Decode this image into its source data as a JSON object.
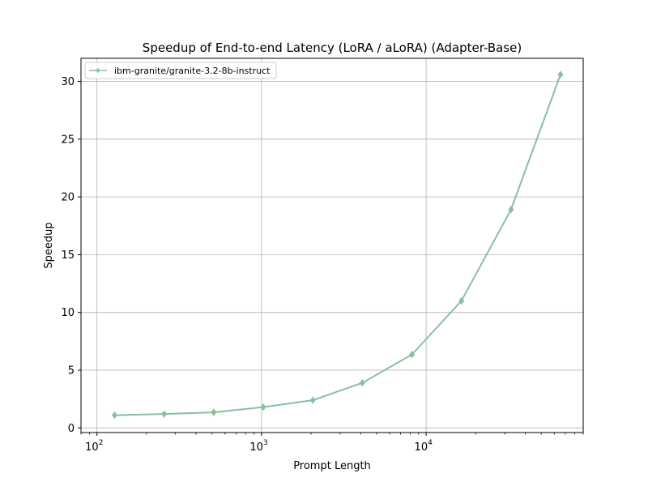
{
  "chart_data": {
    "type": "line",
    "title": "Speedup of End-to-end Latency (LoRA / aLoRA) (Adapter-Base)",
    "xlabel": "Prompt Length",
    "ylabel": "Speedup",
    "xscale": "log",
    "xlim": [
      80,
      90000
    ],
    "ylim": [
      -0.4,
      32
    ],
    "x_ticks": [
      {
        "base": "10",
        "exp": "2",
        "value": 100
      },
      {
        "base": "10",
        "exp": "3",
        "value": 1000
      },
      {
        "base": "10",
        "exp": "4",
        "value": 10000
      }
    ],
    "y_ticks": [
      0,
      5,
      10,
      15,
      20,
      25,
      30
    ],
    "grid": true,
    "legend_position": "top-left",
    "series": [
      {
        "name": "ibm-granite/granite-3.2-8b-instruct",
        "color": "#88c09e",
        "marker": "diamond",
        "x": [
          128,
          256,
          512,
          1024,
          2048,
          4096,
          8192,
          16384,
          32768,
          65536
        ],
        "y": [
          1.1,
          1.2,
          1.35,
          1.8,
          2.4,
          3.9,
          6.35,
          11.0,
          18.9,
          30.6
        ]
      }
    ]
  }
}
